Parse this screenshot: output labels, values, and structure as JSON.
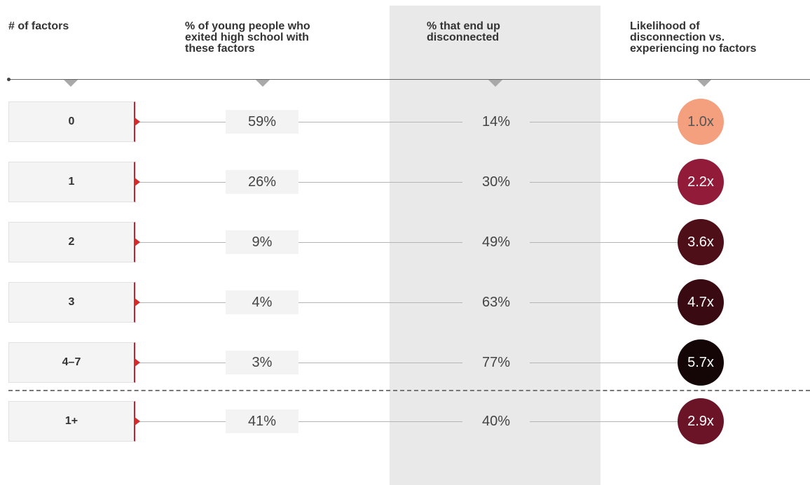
{
  "headers": {
    "factors": "# of factors",
    "exited": "% of young people who\nexited high school with\nthese factors",
    "disconnected": "% that end up\ndisconnected",
    "likelihood": "Likelihood of\ndisconnection vs.\nexperiencing no factors"
  },
  "colors": {
    "red_accent": "#d42a2a",
    "shade": "#e9e9e9",
    "circle_0": "#f4a07f",
    "circle_1": "#921b3a",
    "circle_2": "#4e0f18",
    "circle_3": "#3a0a12",
    "circle_4": "#140507",
    "circle_total": "#6b1428"
  },
  "chart_data": {
    "type": "table",
    "columns": [
      "# of factors",
      "% of young people who exited high school with these factors",
      "% that end up disconnected",
      "Likelihood of disconnection vs. experiencing no factors"
    ],
    "rows": [
      {
        "factors": "0",
        "exited": "59%",
        "disconnected": "14%",
        "likelihood": "1.0x",
        "exited_value": 59,
        "disconnected_value": 14,
        "likelihood_value": 1.0
      },
      {
        "factors": "1",
        "exited": "26%",
        "disconnected": "30%",
        "likelihood": "2.2x",
        "exited_value": 26,
        "disconnected_value": 30,
        "likelihood_value": 2.2
      },
      {
        "factors": "2",
        "exited": "9%",
        "disconnected": "49%",
        "likelihood": "3.6x",
        "exited_value": 9,
        "disconnected_value": 49,
        "likelihood_value": 3.6
      },
      {
        "factors": "3",
        "exited": "4%",
        "disconnected": "63%",
        "likelihood": "4.7x",
        "exited_value": 4,
        "disconnected_value": 63,
        "likelihood_value": 4.7
      },
      {
        "factors": "4–7",
        "exited": "3%",
        "disconnected": "77%",
        "likelihood": "5.7x",
        "exited_value": 3,
        "disconnected_value": 77,
        "likelihood_value": 5.7
      },
      {
        "factors": "1+",
        "exited": "41%",
        "disconnected": "40%",
        "likelihood": "2.9x",
        "exited_value": 41,
        "disconnected_value": 40,
        "likelihood_value": 2.9
      }
    ]
  }
}
